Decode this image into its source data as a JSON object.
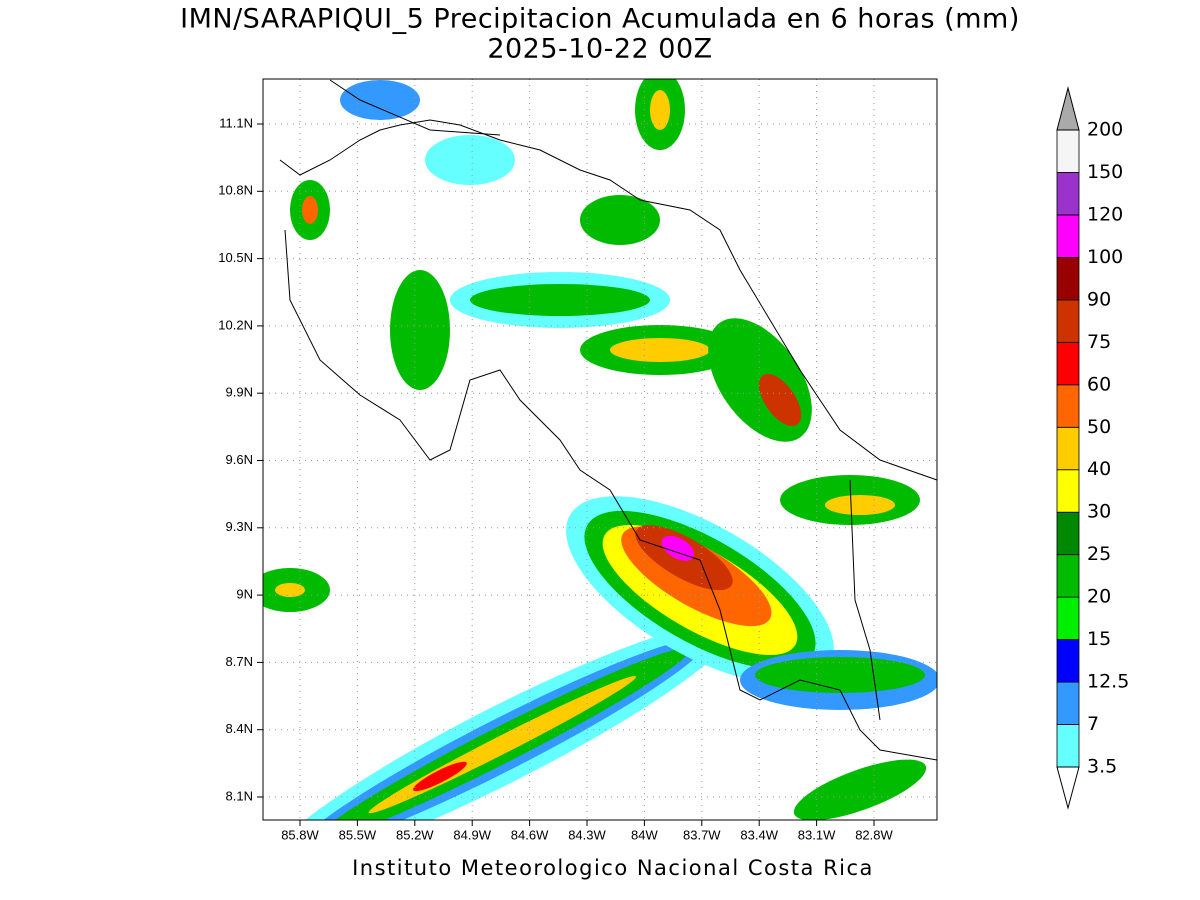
{
  "header": {
    "title": "IMN/SARAPIQUI_5 Precipitacion Acumulada en 6 horas (mm)",
    "subtitle": "2025-10-22 00Z"
  },
  "map": {
    "lat_ticks": [
      "11.1N",
      "10.8N",
      "10.5N",
      "10.2N",
      "9.9N",
      "9.6N",
      "9.3N",
      "9N",
      "8.7N",
      "8.4N",
      "8.1N"
    ],
    "lon_ticks": [
      "85.8W",
      "85.5W",
      "85.2W",
      "84.9W",
      "84.6W",
      "84.3W",
      "84W",
      "83.7W",
      "83.4W",
      "83.1W",
      "82.8W"
    ]
  },
  "colorbar": {
    "levels": [
      3.5,
      7,
      12.5,
      15,
      20,
      25,
      30,
      40,
      50,
      60,
      75,
      90,
      100,
      120,
      150,
      200
    ],
    "colors": [
      "#66ffff",
      "#3399ff",
      "#0000ff",
      "#00ee00",
      "#00bb00",
      "#008800",
      "#ffff00",
      "#ffcc00",
      "#ff6600",
      "#ff0000",
      "#cc3300",
      "#990000",
      "#ff00ff",
      "#9933cc",
      "#f5f5f5"
    ],
    "under_color": "#ffffff",
    "over_color": "#aaaaaa"
  },
  "footer": "Instituto Meteorologico Nacional Costa Rica"
}
